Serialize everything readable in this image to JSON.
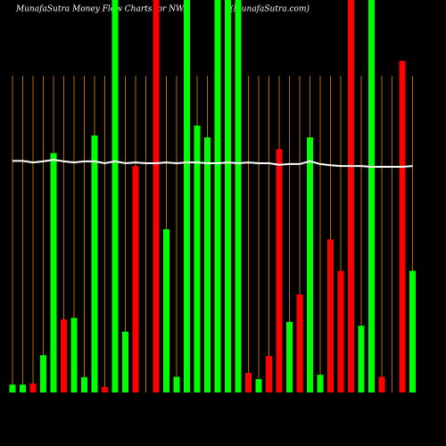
{
  "chart_data": {
    "type": "bar",
    "title": "MunafaSutra  Money Flow  Charts for NWA",
    "subtitle": "(MunafaSutra.com)",
    "categories": [
      null,
      null,
      null,
      null,
      null,
      null,
      null,
      null,
      null,
      null,
      null,
      null,
      null,
      null,
      null,
      null,
      null,
      null,
      null,
      null,
      null,
      null,
      null,
      null,
      null,
      null,
      null,
      null,
      null,
      null,
      null,
      null,
      null,
      null,
      null,
      null,
      null,
      null,
      null,
      null
    ],
    "values": [
      2,
      2,
      2.3,
      9.5,
      61,
      18.6,
      19,
      3.9,
      65.5,
      1.4,
      100,
      15.5,
      57.7,
      0,
      100,
      41.6,
      4,
      100,
      68,
      65,
      100,
      100,
      100,
      5,
      3.4,
      9.3,
      62,
      18,
      25,
      65,
      4.5,
      39,
      31,
      100,
      17,
      100,
      4,
      0,
      84.5,
      31
    ],
    "colors": [
      "#00ff00",
      "#00ff00",
      "#ff0000",
      "#00ff00",
      "#00ff00",
      "#ff0000",
      "#00ff00",
      "#00ff00",
      "#00ff00",
      "#ff0000",
      "#00ff00",
      "#00ff00",
      "#ff0000",
      "#00ff00",
      "#ff0000",
      "#00ff00",
      "#00ff00",
      "#00ff00",
      "#00ff00",
      "#00ff00",
      "#00ff00",
      "#00ff00",
      "#00ff00",
      "#ff0000",
      "#00ff00",
      "#ff0000",
      "#ff0000",
      "#00ff00",
      "#ff0000",
      "#00ff00",
      "#00ff00",
      "#ff0000",
      "#ff0000",
      "#ff0000",
      "#00ff00",
      "#00ff00",
      "#ff0000",
      "#00ff00",
      "#ff0000",
      "#00ff00"
    ],
    "line": {
      "color": "#ffffff",
      "values": [
        59,
        59,
        58.6,
        58.9,
        59.3,
        58.9,
        58.6,
        58.9,
        58.9,
        58.4,
        58.9,
        58.4,
        58.6,
        58.4,
        58.4,
        58.6,
        58.4,
        58.6,
        58.6,
        58.4,
        58.4,
        58.6,
        58.4,
        58.6,
        58.4,
        58.4,
        58,
        58.2,
        58.2,
        58.9,
        58.2,
        57.9,
        57.7,
        57.7,
        57.7,
        57.5,
        57.5,
        57.5,
        57.5,
        57.7
      ]
    },
    "ylim": [
      0,
      100
    ],
    "grid": true,
    "grid_color": "#b36b00"
  }
}
